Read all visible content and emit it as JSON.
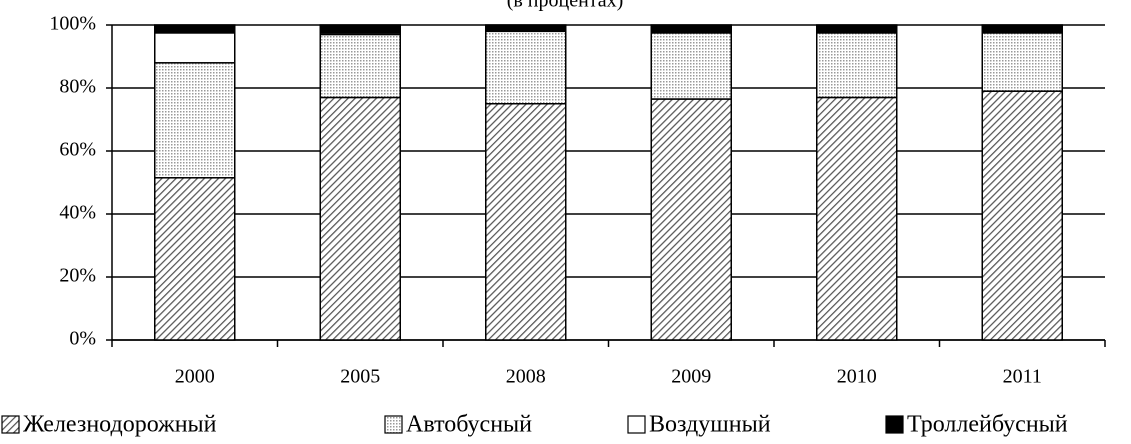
{
  "chart_data": {
    "type": "stacked-bar",
    "subtitle": "(в процентах)",
    "categories": [
      "2000",
      "2005",
      "2008",
      "2009",
      "2010",
      "2011"
    ],
    "series": [
      {
        "name": "Железнодорожный",
        "color": "#555555",
        "values": [
          51.5,
          77,
          75,
          76.5,
          77,
          79
        ]
      },
      {
        "name": "Автобусный",
        "color": "#cccccc",
        "values": [
          36.5,
          20,
          23,
          21,
          20.5,
          18.5
        ]
      },
      {
        "name": "Воздушный",
        "color": "#ffffff",
        "values": [
          9.5,
          0.5,
          0,
          0,
          0,
          0
        ]
      },
      {
        "name": "Троллейбусный",
        "color": "#000000",
        "values": [
          2.5,
          2.5,
          2,
          2.5,
          2.5,
          2.5
        ]
      }
    ],
    "ylim": [
      0,
      100
    ],
    "yticks": [
      {
        "value": 0,
        "label": "0%"
      },
      {
        "value": 20,
        "label": "20%"
      },
      {
        "value": 40,
        "label": "40%"
      },
      {
        "value": 60,
        "label": "60%"
      },
      {
        "value": 80,
        "label": "80%"
      },
      {
        "value": 100,
        "label": "100%"
      }
    ],
    "grid": true,
    "legend": "bottom"
  }
}
